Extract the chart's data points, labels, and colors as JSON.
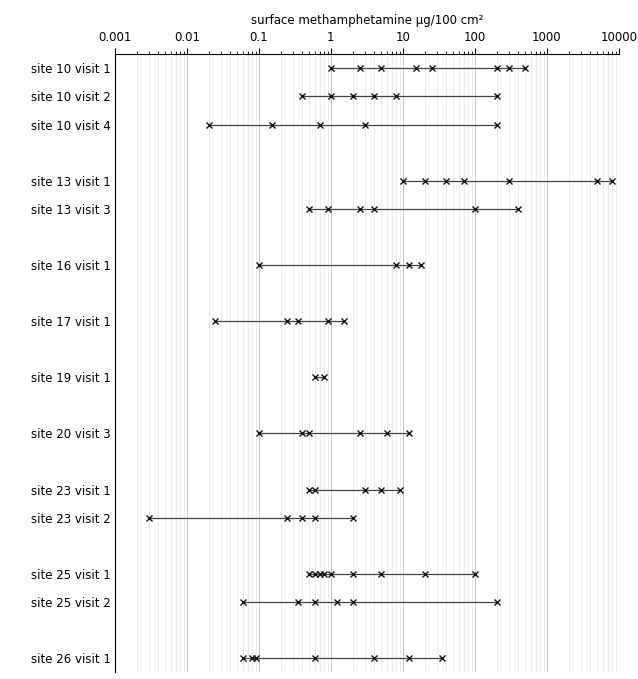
{
  "title": "surface methamphetamine μg/100 cm²",
  "xmin": 0.001,
  "xmax": 10000,
  "rows": [
    {
      "label": "site 10 visit 1",
      "values": [
        1.0,
        2.5,
        5.0,
        15.0,
        25.0,
        200.0,
        300.0,
        500.0
      ],
      "y": 0
    },
    {
      "label": "site 10 visit 2",
      "values": [
        0.4,
        1.0,
        2.0,
        4.0,
        8.0,
        200.0
      ],
      "y": 1
    },
    {
      "label": "site 10 visit 4",
      "values": [
        0.02,
        0.15,
        0.7,
        3.0,
        200.0
      ],
      "y": 2
    },
    {
      "label": "",
      "values": [],
      "y": 3
    },
    {
      "label": "site 13 visit 1",
      "values": [
        10.0,
        20.0,
        40.0,
        70.0,
        300.0,
        5000.0,
        8000.0
      ],
      "y": 4
    },
    {
      "label": "site 13 visit 3",
      "values": [
        0.5,
        0.9,
        2.5,
        4.0,
        100.0,
        400.0
      ],
      "y": 5
    },
    {
      "label": "",
      "values": [],
      "y": 6
    },
    {
      "label": "site 16 visit 1",
      "values": [
        0.1,
        8.0,
        12.0,
        18.0
      ],
      "y": 7
    },
    {
      "label": "",
      "values": [],
      "y": 8
    },
    {
      "label": "site 17 visit 1",
      "values": [
        0.025,
        0.25,
        0.35,
        0.9,
        1.5
      ],
      "y": 9
    },
    {
      "label": "",
      "values": [],
      "y": 10
    },
    {
      "label": "site 19 visit 1",
      "values": [
        0.6,
        0.8
      ],
      "y": 11
    },
    {
      "label": "",
      "values": [],
      "y": 12
    },
    {
      "label": "site 20 visit 3",
      "values": [
        0.1,
        0.4,
        0.5,
        2.5,
        6.0,
        12.0
      ],
      "y": 13
    },
    {
      "label": "",
      "values": [],
      "y": 14
    },
    {
      "label": "site 23 visit 1",
      "values": [
        0.5,
        0.6,
        3.0,
        5.0,
        9.0
      ],
      "y": 15
    },
    {
      "label": "site 23 visit 2",
      "values": [
        0.003,
        0.25,
        0.4,
        0.6,
        2.0
      ],
      "y": 16
    },
    {
      "label": "",
      "values": [],
      "y": 17
    },
    {
      "label": "site 25 visit 1",
      "values": [
        0.5,
        0.6,
        0.7,
        0.8,
        1.0,
        2.0,
        5.0,
        20.0,
        100.0
      ],
      "y": 18
    },
    {
      "label": "site 25 visit 2",
      "values": [
        0.06,
        0.35,
        0.6,
        1.2,
        2.0,
        200.0
      ],
      "y": 19
    },
    {
      "label": "",
      "values": [],
      "y": 20
    },
    {
      "label": "site 26 visit 1",
      "values": [
        0.06,
        0.08,
        0.09,
        0.6,
        4.0,
        12.0,
        35.0
      ],
      "y": 21
    }
  ],
  "line_color": "#444444",
  "marker_color": "#111111",
  "grid_major_color": "#bbbbbb",
  "grid_minor_color": "#dddddd",
  "background_color": "#ffffff",
  "figsize": [
    6.38,
    6.79
  ],
  "dpi": 100
}
